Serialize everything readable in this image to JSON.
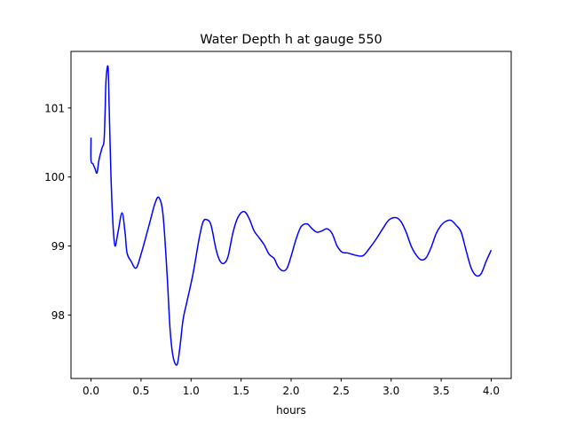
{
  "chart_data": {
    "type": "line",
    "title": "Water Depth h at gauge 550",
    "xlabel": "hours",
    "ylabel": "",
    "xlim": [
      -0.2,
      4.2
    ],
    "ylim": [
      97.08,
      101.82
    ],
    "xticks": [
      0.0,
      0.5,
      1.0,
      1.5,
      2.0,
      2.5,
      3.0,
      3.5,
      4.0
    ],
    "xtick_labels": [
      "0.0",
      "0.5",
      "1.0",
      "1.5",
      "2.0",
      "2.5",
      "3.0",
      "3.5",
      "4.0"
    ],
    "yticks": [
      98,
      99,
      100,
      101
    ],
    "ytick_labels": [
      "98",
      "99",
      "100",
      "101"
    ],
    "grid": false,
    "legend": "none",
    "series": [
      {
        "color": "#0000ff",
        "points": [
          [
            0.0,
            100.57
          ],
          [
            0.0,
            100.24
          ],
          [
            0.02,
            100.19
          ],
          [
            0.04,
            100.12
          ],
          [
            0.06,
            100.06
          ],
          [
            0.08,
            100.25
          ],
          [
            0.11,
            100.42
          ],
          [
            0.13,
            100.52
          ],
          [
            0.14,
            100.9
          ],
          [
            0.15,
            101.4
          ],
          [
            0.17,
            101.6
          ],
          [
            0.18,
            101.1
          ],
          [
            0.2,
            100.0
          ],
          [
            0.22,
            99.3
          ],
          [
            0.24,
            99.0
          ],
          [
            0.27,
            99.2
          ],
          [
            0.31,
            99.48
          ],
          [
            0.34,
            99.2
          ],
          [
            0.36,
            98.9
          ],
          [
            0.4,
            98.78
          ],
          [
            0.45,
            98.68
          ],
          [
            0.5,
            98.88
          ],
          [
            0.58,
            99.3
          ],
          [
            0.64,
            99.62
          ],
          [
            0.68,
            99.7
          ],
          [
            0.72,
            99.45
          ],
          [
            0.76,
            98.6
          ],
          [
            0.79,
            97.8
          ],
          [
            0.82,
            97.4
          ],
          [
            0.86,
            97.28
          ],
          [
            0.89,
            97.55
          ],
          [
            0.92,
            97.93
          ],
          [
            0.96,
            98.2
          ],
          [
            1.02,
            98.6
          ],
          [
            1.08,
            99.1
          ],
          [
            1.12,
            99.35
          ],
          [
            1.16,
            99.38
          ],
          [
            1.2,
            99.3
          ],
          [
            1.25,
            98.95
          ],
          [
            1.29,
            98.78
          ],
          [
            1.33,
            98.75
          ],
          [
            1.37,
            98.85
          ],
          [
            1.42,
            99.2
          ],
          [
            1.47,
            99.42
          ],
          [
            1.53,
            99.5
          ],
          [
            1.58,
            99.4
          ],
          [
            1.63,
            99.22
          ],
          [
            1.68,
            99.12
          ],
          [
            1.73,
            99.02
          ],
          [
            1.78,
            98.88
          ],
          [
            1.83,
            98.82
          ],
          [
            1.87,
            98.7
          ],
          [
            1.92,
            98.64
          ],
          [
            1.96,
            98.68
          ],
          [
            2.0,
            98.85
          ],
          [
            2.05,
            99.1
          ],
          [
            2.1,
            99.28
          ],
          [
            2.16,
            99.32
          ],
          [
            2.21,
            99.25
          ],
          [
            2.26,
            99.2
          ],
          [
            2.31,
            99.22
          ],
          [
            2.36,
            99.25
          ],
          [
            2.41,
            99.18
          ],
          [
            2.46,
            99.0
          ],
          [
            2.51,
            98.91
          ],
          [
            2.56,
            98.9
          ],
          [
            2.61,
            98.88
          ],
          [
            2.66,
            98.86
          ],
          [
            2.72,
            98.86
          ],
          [
            2.78,
            98.96
          ],
          [
            2.85,
            99.1
          ],
          [
            2.92,
            99.26
          ],
          [
            2.98,
            99.38
          ],
          [
            3.05,
            99.41
          ],
          [
            3.1,
            99.35
          ],
          [
            3.15,
            99.2
          ],
          [
            3.2,
            99.0
          ],
          [
            3.25,
            98.87
          ],
          [
            3.3,
            98.8
          ],
          [
            3.35,
            98.83
          ],
          [
            3.4,
            98.98
          ],
          [
            3.45,
            99.18
          ],
          [
            3.5,
            99.3
          ],
          [
            3.55,
            99.36
          ],
          [
            3.6,
            99.37
          ],
          [
            3.65,
            99.3
          ],
          [
            3.7,
            99.2
          ],
          [
            3.75,
            98.93
          ],
          [
            3.8,
            98.68
          ],
          [
            3.85,
            98.57
          ],
          [
            3.9,
            98.6
          ],
          [
            3.95,
            98.78
          ],
          [
            4.0,
            98.94
          ]
        ]
      }
    ]
  }
}
